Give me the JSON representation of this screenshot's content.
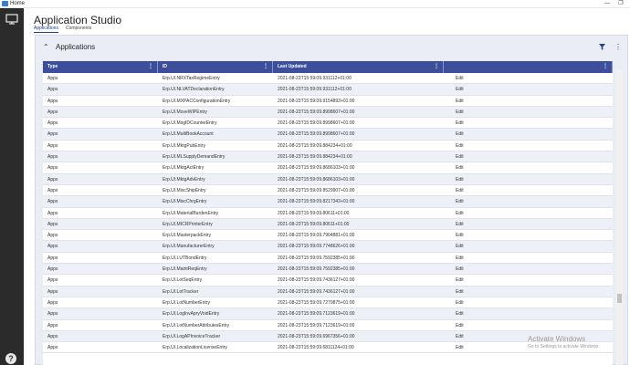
{
  "window": {
    "title": "Home",
    "minimize_glyph": "—",
    "restore_glyph": "❐"
  },
  "rail": {
    "top_icon": "monitor-icon",
    "help_icon": "help-icon",
    "help_glyph": "?"
  },
  "header": {
    "app_title": "Application Studio",
    "tabs": [
      {
        "label": "Applications",
        "active": true
      },
      {
        "label": "Components",
        "active": false
      }
    ]
  },
  "panel": {
    "title": "Applications",
    "collapse_glyph": "⌃",
    "more_glyph": "⋮",
    "filter_icon": "filter-icon"
  },
  "grid": {
    "columns": [
      "Type",
      "ID",
      "Last Updated",
      ""
    ],
    "column_menu_glyph": "⋮",
    "rows": [
      [
        "Apps",
        "Erp.UI.NRXTaxRegimeEntry",
        "2021-08-23T15:59:09.931112+01:00",
        "Edit"
      ],
      [
        "Apps",
        "Erp.UI.NLVATDeclarationEntry",
        "2021-08-23T15:59:09.931112+01:00",
        "Edit"
      ],
      [
        "Apps",
        "Erp.UI.MXPACConfigurationEntry",
        "2021-08-23T15:59:09.9154893+01:00",
        "Edit"
      ],
      [
        "Apps",
        "Erp.UI.MoveWIPEntry",
        "2021-08-23T15:59:09.8998607+01:00",
        "Edit"
      ],
      [
        "Apps",
        "Erp.UI.MsgIDCounterEntry",
        "2021-08-23T15:59:09.8998607+01:00",
        "Edit"
      ],
      [
        "Apps",
        "Erp.UI.MultiBookAccount",
        "2021-08-23T15:59:09.8998607+01:00",
        "Edit"
      ],
      [
        "Apps",
        "Erp.UI.MktgPubEntry",
        "2021-08-23T15:59:09.884234+01:00",
        "Edit"
      ],
      [
        "Apps",
        "Erp.UI.MLSupplyDemandEntry",
        "2021-08-23T15:59:09.884234+01:00",
        "Edit"
      ],
      [
        "Apps",
        "Erp.UI.MktgActEntry",
        "2021-08-23T15:59:09.8686103+01:00",
        "Edit"
      ],
      [
        "Apps",
        "Erp.UI.MktgAdvEntry",
        "2021-08-23T15:59:09.8686103+01:00",
        "Edit"
      ],
      [
        "Apps",
        "Erp.UI.MiscShipEntry",
        "2021-08-23T15:59:09.8529907+01:00",
        "Edit"
      ],
      [
        "Apps",
        "Erp.UI.MiscChrgEntry",
        "2021-08-23T15:59:09.8217343+01:00",
        "Edit"
      ],
      [
        "Apps",
        "Erp.UI.MaterialBurdenEntry",
        "2021-08-23T15:59:09.80611+01:00",
        "Edit"
      ],
      [
        "Apps",
        "Erp.UI.MICRPrinterEntry",
        "2021-08-23T15:59:09.80611+01:00",
        "Edit"
      ],
      [
        "Apps",
        "Erp.UI.MasterpackEntry",
        "2021-08-23T15:59:09.7904881+01:00",
        "Edit"
      ],
      [
        "Apps",
        "Erp.UI.ManufacturerEntry",
        "2021-08-23T15:59:09.7748626+01:00",
        "Edit"
      ],
      [
        "Apps",
        "Erp.UI.LUTBondEntry",
        "2021-08-23T15:59:09.7592385+01:00",
        "Edit"
      ],
      [
        "Apps",
        "Erp.UI.MaintReqEntry",
        "2021-08-23T15:59:09.7592385+01:00",
        "Edit"
      ],
      [
        "Apps",
        "Erp.UI.LotSeqEntry",
        "2021-08-23T15:59:09.7436127+01:00",
        "Edit"
      ],
      [
        "Apps",
        "Erp.UI.LotTracker",
        "2021-08-23T15:59:09.7436127+01:00",
        "Edit"
      ],
      [
        "Apps",
        "Erp.UI.LotNumberEntry",
        "2021-08-23T15:59:09.7279875+01:00",
        "Edit"
      ],
      [
        "Apps",
        "Erp.UI.LogInvApryVoidEntry",
        "2021-08-23T15:59:09.7123619+01:00",
        "Edit"
      ],
      [
        "Apps",
        "Erp.UI.LotNumberAttributesEntry",
        "2021-08-23T15:59:09.7123619+01:00",
        "Edit"
      ],
      [
        "Apps",
        "Erp.UI.LogAPInvoiceTracker",
        "2021-08-23T15:59:09.6967356+01:00",
        "Edit"
      ],
      [
        "Apps",
        "Erp.UI.LocalizationLicenseEntry",
        "2021-08-23T15:59:09.6811124+01:00",
        "Edit"
      ]
    ]
  },
  "watermark": {
    "line1": "Activate Windows",
    "line2": "Go to Settings to activate Windows."
  },
  "colors": {
    "grid_header": "#3c4e9c",
    "rail": "#2b2b2b",
    "panel_bg": "#ebedf5",
    "row_alt": "#eef0f7"
  }
}
